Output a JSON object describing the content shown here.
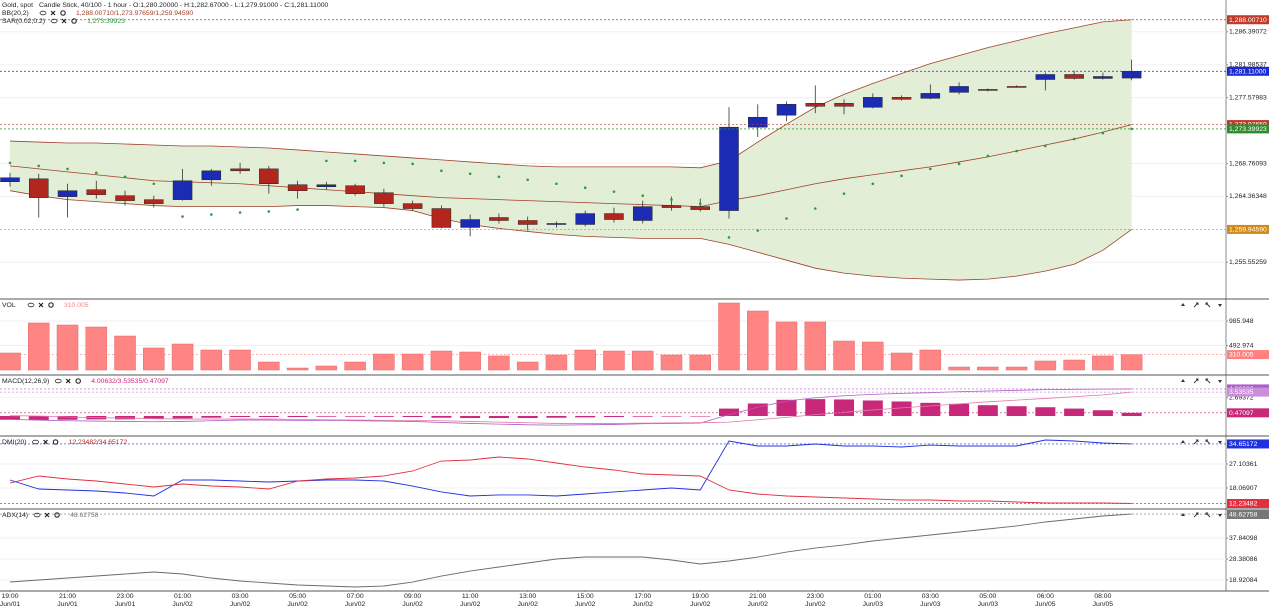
{
  "chart_data": [
    {
      "type": "candlestick",
      "title": "Gold, spot",
      "subtitle": "Candle Stick, 40/100 - 1 hour - O:1,280.20000 - H:1,282.67000 - L:1,279.91000 - C:1,281.11000",
      "categories": [
        [
          "19:00",
          "Jun/01"
        ],
        null,
        [
          "21:00",
          "Jun/01"
        ],
        null,
        [
          "23:00",
          "Jun/01"
        ],
        null,
        [
          "01:00",
          "Jun/02"
        ],
        null,
        [
          "03:00",
          "Jun/02"
        ],
        null,
        [
          "05:00",
          "Jun/02"
        ],
        null,
        [
          "07:00",
          "Jun/02"
        ],
        null,
        [
          "09:00",
          "Jun/02"
        ],
        null,
        [
          "11:00",
          "Jun/02"
        ],
        null,
        [
          "13:00",
          "Jun/02"
        ],
        null,
        [
          "15:00",
          "Jun/02"
        ],
        null,
        [
          "17:00",
          "Jun/02"
        ],
        null,
        [
          "19:00",
          "Jun/02"
        ],
        null,
        [
          "21:00",
          "Jun/02"
        ],
        null,
        [
          "23:00",
          "Jun/02"
        ],
        null,
        [
          "01:00",
          "Jun/03"
        ],
        null,
        [
          "03:00",
          "Jun/03"
        ],
        null,
        [
          "05:00",
          "Jun/03"
        ],
        null,
        [
          "06:00",
          "Jun/05"
        ],
        null,
        [
          "08:00",
          "Jun/05"
        ],
        null
      ],
      "open": [
        1266.33,
        1266.72,
        1264.33,
        1265.26,
        1264.46,
        1263.93,
        1263.93,
        1266.59,
        1268.05,
        1268.05,
        1265.93,
        1265.66,
        1265.79,
        1264.86,
        1263.4,
        1262.74,
        1260.21,
        1261.54,
        1261.14,
        1260.61,
        1260.61,
        1262.07,
        1261.14,
        1263.14,
        1263.0,
        1262.47,
        1273.63,
        1275.23,
        1276.82,
        1276.82,
        1276.29,
        1277.62,
        1277.49,
        1278.29,
        1278.68,
        1279.08,
        1280.01,
        1280.68,
        1280.15,
        1280.2
      ],
      "high": [
        1267.52,
        1267.39,
        1266.06,
        1266.46,
        1265.13,
        1264.46,
        1268.05,
        1268.05,
        1268.85,
        1268.45,
        1266.46,
        1266.33,
        1266.06,
        1265.39,
        1263.8,
        1263.14,
        1261.94,
        1262.07,
        1261.67,
        1261.01,
        1262.47,
        1262.87,
        1263.8,
        1264.33,
        1264.07,
        1276.29,
        1276.69,
        1277.09,
        1279.22,
        1277.36,
        1278.15,
        1277.89,
        1279.35,
        1279.62,
        1278.82,
        1279.22,
        1280.94,
        1281.21,
        1280.94,
        1282.67
      ],
      "low": [
        1265.66,
        1261.54,
        1261.54,
        1264.07,
        1263.14,
        1262.87,
        1263.8,
        1265.79,
        1267.39,
        1264.73,
        1264.07,
        1265.26,
        1264.46,
        1263.0,
        1262.47,
        1260.08,
        1259.02,
        1260.74,
        1259.81,
        1260.21,
        1260.34,
        1260.88,
        1260.74,
        1262.47,
        1262.34,
        1261.41,
        1272.31,
        1274.43,
        1275.5,
        1275.36,
        1276.16,
        1277.22,
        1277.36,
        1278.02,
        1278.42,
        1278.95,
        1278.55,
        1280.01,
        1280.01,
        1279.91
      ],
      "close": [
        1266.86,
        1264.2,
        1265.13,
        1264.6,
        1263.8,
        1263.4,
        1266.46,
        1267.79,
        1267.79,
        1266.06,
        1265.13,
        1265.93,
        1264.73,
        1263.4,
        1262.74,
        1260.21,
        1261.27,
        1261.14,
        1260.61,
        1260.74,
        1262.07,
        1261.27,
        1263.0,
        1262.87,
        1262.6,
        1273.63,
        1274.96,
        1276.69,
        1276.43,
        1276.43,
        1277.62,
        1277.36,
        1278.15,
        1279.08,
        1278.55,
        1278.95,
        1280.68,
        1280.15,
        1280.41,
        1281.11
      ],
      "up_color": "#1c2bb3",
      "down_color": "#b3261e",
      "indicators": [
        {
          "type": "band",
          "name": "BB(20,2)",
          "readout": "1,288.00710/1,273.97659/1,259.94590",
          "color": "#a0402a",
          "fill": "#e2efd6",
          "upper": [
            1271.77,
            1271.64,
            1271.51,
            1271.51,
            1271.38,
            1271.24,
            1271.11,
            1271.11,
            1270.98,
            1270.84,
            1270.58,
            1270.31,
            1270.05,
            1269.78,
            1269.51,
            1269.25,
            1268.98,
            1268.72,
            1268.45,
            1268.32,
            1268.32,
            1268.32,
            1268.32,
            1268.32,
            1268.19,
            1269.12,
            1271.64,
            1274.03,
            1276.29,
            1278.02,
            1279.48,
            1280.81,
            1282.14,
            1283.2,
            1284.27,
            1285.2,
            1286.13,
            1286.92,
            1287.72,
            1288.0071
          ],
          "middle": [
            1268.45,
            1268.05,
            1267.65,
            1267.26,
            1266.86,
            1266.46,
            1266.33,
            1266.19,
            1266.06,
            1265.79,
            1265.53,
            1265.26,
            1265.0,
            1264.73,
            1264.46,
            1264.2,
            1264.07,
            1263.93,
            1263.8,
            1263.67,
            1263.53,
            1263.4,
            1263.27,
            1263.14,
            1263.0,
            1263.8,
            1264.46,
            1265.26,
            1266.06,
            1266.72,
            1267.26,
            1267.79,
            1268.32,
            1268.98,
            1269.65,
            1270.44,
            1271.24,
            1272.04,
            1272.97,
            1273.97659
          ],
          "lower": [
            1265.13,
            1264.46,
            1263.93,
            1263.67,
            1263.4,
            1263.14,
            1263.0,
            1263.0,
            1263.0,
            1263.0,
            1263.14,
            1263.14,
            1263.0,
            1262.87,
            1262.47,
            1261.41,
            1260.61,
            1260.08,
            1259.68,
            1259.28,
            1259.02,
            1258.88,
            1258.75,
            1258.75,
            1258.75,
            1257.95,
            1256.89,
            1255.83,
            1254.76,
            1254.1,
            1253.7,
            1253.43,
            1253.3,
            1253.17,
            1253.3,
            1253.7,
            1254.36,
            1255.29,
            1257.15,
            1259.9459
          ]
        },
        {
          "type": "dots",
          "name": "SAR(0.02,0.2)",
          "readout": "1,273.39923",
          "color": "#2e9a3a",
          "values": [
            1268.85,
            1268.45,
            1268.05,
            1267.52,
            1266.99,
            1266.06,
            1261.67,
            1261.94,
            1262.21,
            1262.34,
            1262.6,
            1269.12,
            1269.12,
            1268.85,
            1268.72,
            1267.79,
            1267.39,
            1266.99,
            1266.59,
            1266.06,
            1265.53,
            1265.0,
            1264.46,
            1263.93,
            1263.4,
            1258.88,
            1259.81,
            1261.41,
            1262.74,
            1264.73,
            1266.06,
            1267.12,
            1268.05,
            1268.72,
            1269.78,
            1270.44,
            1271.11,
            1272.04,
            1272.84,
            1273.39923
          ]
        }
      ],
      "ylim": [
        1250.77,
        1290.38
      ],
      "yticks": [
        {
          "value": 1286.39072,
          "label": "1,286.39072"
        },
        {
          "value": 1281.98537,
          "label": "1,281.98537"
        },
        {
          "value": 1277.57983,
          "label": "1,277.57983"
        },
        {
          "value": 1268.76093,
          "label": "1,268.76093"
        },
        {
          "value": 1264.36348,
          "label": "1,264.36348"
        },
        {
          "value": 1255.55259,
          "label": "1,255.55259"
        }
      ],
      "markers": [
        {
          "value": 1288.0071,
          "label": "1,288.00710",
          "color": "#c0392b"
        },
        {
          "value": 1281.11,
          "label": "1,281.11000",
          "color": "#1a2bd0"
        },
        {
          "value": 1273.97659,
          "label": "1,273.97659",
          "color": "#c0392b"
        },
        {
          "value": 1273.39923,
          "label": "1,273.39923",
          "color": "#2e8b2e"
        },
        {
          "value": 1259.9459,
          "label": "1,259.94590",
          "color": "#d08a1a"
        }
      ]
    },
    {
      "type": "bar",
      "title": "VOL",
      "readout": "310.005",
      "color": "#ff8585",
      "values": [
        342,
        946,
        905,
        865,
        684,
        443,
        523,
        402,
        402,
        161,
        40,
        80,
        161,
        322,
        322,
        382,
        362,
        282,
        161,
        302,
        402,
        382,
        382,
        302,
        302,
        1348,
        1187,
        966,
        966,
        583,
        563,
        342,
        402,
        60,
        60,
        60,
        181,
        201,
        282,
        310.005
      ],
      "ylim": [
        -80.5,
        1408
      ],
      "yticks": [
        985.948,
        492.974
      ],
      "markers": [
        {
          "value": 310.005,
          "label": "310.005",
          "color": "#ff8080"
        }
      ]
    },
    {
      "type": "macd",
      "title": "MACD(12,26,9)",
      "readout": "4.00632/3.53535/0.47097",
      "color": "#c8287a",
      "macd_color": "#b05cc8",
      "signal_color": "#e07aa6",
      "histogram": [
        -0.55,
        -0.6,
        -0.55,
        -0.5,
        -0.5,
        -0.45,
        -0.35,
        -0.25,
        -0.15,
        -0.15,
        -0.15,
        -0.1,
        -0.1,
        -0.12,
        -0.15,
        -0.25,
        -0.3,
        -0.3,
        -0.3,
        -0.25,
        -0.2,
        -0.15,
        -0.1,
        -0.08,
        -0.06,
        1.1,
        1.85,
        2.4,
        2.5,
        2.45,
        2.3,
        2.15,
        1.95,
        1.8,
        1.6,
        1.45,
        1.3,
        1.1,
        0.85,
        0.47097
      ],
      "macd": [
        -0.5,
        -0.6,
        -0.7,
        -0.75,
        -0.8,
        -0.85,
        -0.8,
        -0.7,
        -0.6,
        -0.6,
        -0.65,
        -0.65,
        -0.7,
        -0.75,
        -0.8,
        -0.95,
        -1.1,
        -1.2,
        -1.3,
        -1.35,
        -1.3,
        -1.25,
        -1.15,
        -1.1,
        -1.05,
        0.2,
        1.3,
        2.2,
        2.7,
        3.0,
        3.2,
        3.35,
        3.45,
        3.6,
        3.7,
        3.8,
        3.9,
        3.95,
        3.98,
        4.00632
      ],
      "signal": [
        0.05,
        0,
        -0.15,
        -0.25,
        -0.3,
        -0.4,
        -0.45,
        -0.45,
        -0.45,
        -0.45,
        -0.5,
        -0.55,
        -0.6,
        -0.63,
        -0.65,
        -0.7,
        -0.8,
        -0.9,
        -1.0,
        -1.1,
        -1.1,
        -1.1,
        -1.05,
        -1.02,
        -0.99,
        -0.9,
        -0.55,
        -0.2,
        0.2,
        0.55,
        0.9,
        1.2,
        1.5,
        1.8,
        2.1,
        2.35,
        2.6,
        2.85,
        3.13,
        3.53535
      ],
      "ylim": [
        -2.81,
        5.92
      ],
      "yticks": [
        2.69372
      ],
      "markers": [
        {
          "value": 4.00632,
          "label": "4.00632",
          "color": "#b05cc8"
        },
        {
          "value": 3.53535,
          "label": "3.53535",
          "color": "#c98fd8"
        },
        {
          "value": 0.47097,
          "label": "0.47097",
          "color": "#c8287a"
        }
      ]
    },
    {
      "type": "line",
      "title": "DMI(20)",
      "readout": "12.23482/34.65172",
      "color": "#b3261e",
      "series": [
        {
          "color": "#2030e0",
          "values": [
            21.08,
            17.69,
            17.32,
            16.94,
            16.19,
            15.06,
            21.08,
            21.08,
            20.7,
            20.33,
            20.7,
            21.08,
            21.08,
            20.7,
            18.82,
            16.57,
            15.06,
            15.44,
            15.44,
            15.06,
            15.81,
            16.57,
            17.32,
            18.07,
            17.32,
            35.76,
            33.88,
            33.88,
            34.63,
            33.88,
            33.88,
            33.5,
            34.25,
            33.88,
            33.88,
            33.88,
            36.14,
            35.76,
            35.01,
            34.65172
          ]
        },
        {
          "color": "#e03040",
          "values": [
            19.95,
            22.59,
            21.46,
            20.7,
            19.58,
            18.45,
            19.58,
            18.82,
            18.45,
            17.69,
            20.7,
            21.46,
            21.84,
            22.59,
            24.47,
            28.23,
            28.61,
            29.74,
            28.99,
            27.48,
            25.97,
            24.85,
            23.34,
            22.96,
            22.59,
            17.32,
            15.81,
            15.06,
            14.68,
            14.3,
            13.93,
            13.55,
            13.55,
            13.18,
            13.18,
            12.8,
            12.42,
            12.42,
            12.42,
            12.23482
          ]
        }
      ],
      "ylim": [
        10.54,
        37.27
      ],
      "yticks": [
        27.10361,
        18.06907
      ],
      "markers": [
        {
          "value": 34.65172,
          "label": "34.65172",
          "color": "#2030e0"
        },
        {
          "value": 12.23482,
          "label": "12.23482",
          "color": "#e03040"
        }
      ]
    },
    {
      "type": "line",
      "title": "ADX(14)",
      "readout": "48.62758",
      "color": "#777777",
      "series": [
        {
          "color": "#6a6a6a",
          "values": [
            18.02,
            18.92,
            19.82,
            20.72,
            21.62,
            22.52,
            21.62,
            19.82,
            18.47,
            17.57,
            16.67,
            16.22,
            15.77,
            16.22,
            18.02,
            20.72,
            22.97,
            24.78,
            26.58,
            28.38,
            29.28,
            29.28,
            29.28,
            27.93,
            26.13,
            27.48,
            29.28,
            31.53,
            33.33,
            34.69,
            36.49,
            37.84,
            39.19,
            40.54,
            41.89,
            43.25,
            45.05,
            46.4,
            47.75,
            48.62758
          ]
        }
      ],
      "ylim": [
        14.42,
        50.45
      ],
      "yticks": [
        37.84098,
        28.38086,
        18.92084
      ],
      "markers": [
        {
          "value": 48.62758,
          "label": "48.62758",
          "color": "#777777"
        }
      ]
    }
  ]
}
